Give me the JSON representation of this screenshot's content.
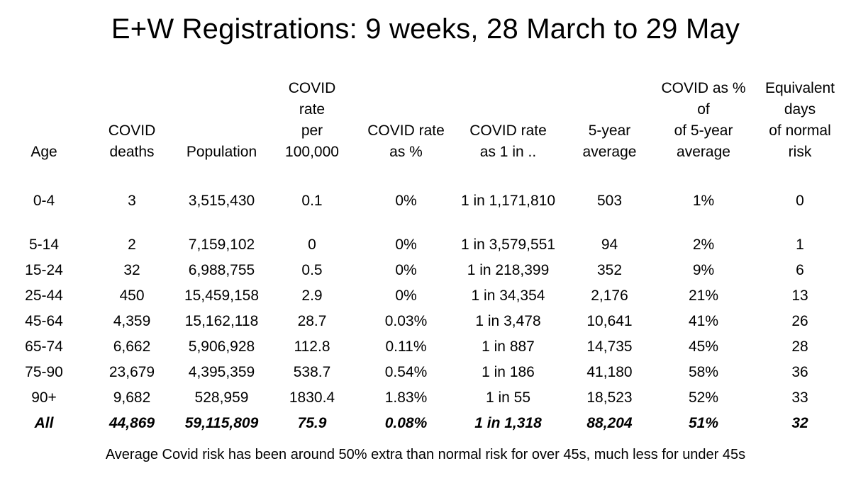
{
  "title": "E+W Registrations: 9 weeks, 28 March to 29 May",
  "footer": "Average Covid risk has been around 50% extra than normal risk for over 45s, much less for under 45s",
  "table": {
    "headers": [
      "Age",
      "COVID\ndeaths",
      "Population",
      "COVID\nrate\nper\n100,000",
      "COVID rate\nas %",
      "COVID rate\nas 1 in ..",
      "5-year\naverage",
      "COVID as %\nof\nof 5-year\naverage",
      "Equivalent\ndays\nof normal\nrisk"
    ],
    "rows": [
      [
        "0-4",
        "3",
        "3,515,430",
        "0.1",
        "0%",
        "1 in 1,171,810",
        "503",
        "1%",
        "0"
      ],
      [
        "5-14",
        "2",
        "7,159,102",
        "0",
        "0%",
        "1 in 3,579,551",
        "94",
        "2%",
        "1"
      ],
      [
        "15-24",
        "32",
        "6,988,755",
        "0.5",
        "0%",
        "1 in 218,399",
        "352",
        "9%",
        "6"
      ],
      [
        "25-44",
        "450",
        "15,459,158",
        "2.9",
        "0%",
        "1 in 34,354",
        "2,176",
        "21%",
        "13"
      ],
      [
        "45-64",
        "4,359",
        "15,162,118",
        "28.7",
        "0.03%",
        "1 in 3,478",
        "10,641",
        "41%",
        "26"
      ],
      [
        "65-74",
        "6,662",
        "5,906,928",
        "112.8",
        "0.11%",
        "1 in 887",
        "14,735",
        "45%",
        "28"
      ],
      [
        "75-90",
        "23,679",
        "4,395,359",
        "538.7",
        "0.54%",
        "1 in 186",
        "41,180",
        "58%",
        "36"
      ],
      [
        "90+",
        "9,682",
        "528,959",
        "1830.4",
        "1.83%",
        "1 in 55",
        "18,523",
        "52%",
        "33"
      ],
      [
        "All",
        "44,869",
        "59,115,809",
        "75.9",
        "0.08%",
        "1 in 1,318",
        "88,204",
        "51%",
        "32"
      ]
    ]
  },
  "chart_data": {
    "type": "table",
    "title": "E+W Registrations: 9 weeks, 28 March to 29 May",
    "note": "Average Covid risk has been around 50% extra than normal risk for over 45s, much less for under 45s",
    "columns": [
      "Age",
      "COVID deaths",
      "Population",
      "COVID rate per 100,000",
      "COVID rate as %",
      "COVID rate as 1 in ..",
      "5-year average",
      "COVID as % of of 5-year average",
      "Equivalent days of normal risk"
    ],
    "rows": [
      {
        "age": "0-4",
        "covid_deaths": 3,
        "population": 3515430,
        "rate_per_100k": 0.1,
        "rate_pct": "0%",
        "rate_1_in": 1171810,
        "five_year_average": 503,
        "covid_pct_of_5yr_avg": "1%",
        "equivalent_days": 0
      },
      {
        "age": "5-14",
        "covid_deaths": 2,
        "population": 7159102,
        "rate_per_100k": 0,
        "rate_pct": "0%",
        "rate_1_in": 3579551,
        "five_year_average": 94,
        "covid_pct_of_5yr_avg": "2%",
        "equivalent_days": 1
      },
      {
        "age": "15-24",
        "covid_deaths": 32,
        "population": 6988755,
        "rate_per_100k": 0.5,
        "rate_pct": "0%",
        "rate_1_in": 218399,
        "five_year_average": 352,
        "covid_pct_of_5yr_avg": "9%",
        "equivalent_days": 6
      },
      {
        "age": "25-44",
        "covid_deaths": 450,
        "population": 15459158,
        "rate_per_100k": 2.9,
        "rate_pct": "0%",
        "rate_1_in": 34354,
        "five_year_average": 2176,
        "covid_pct_of_5yr_avg": "21%",
        "equivalent_days": 13
      },
      {
        "age": "45-64",
        "covid_deaths": 4359,
        "population": 15162118,
        "rate_per_100k": 28.7,
        "rate_pct": "0.03%",
        "rate_1_in": 3478,
        "five_year_average": 10641,
        "covid_pct_of_5yr_avg": "41%",
        "equivalent_days": 26
      },
      {
        "age": "65-74",
        "covid_deaths": 6662,
        "population": 5906928,
        "rate_per_100k": 112.8,
        "rate_pct": "0.11%",
        "rate_1_in": 887,
        "five_year_average": 14735,
        "covid_pct_of_5yr_avg": "45%",
        "equivalent_days": 28
      },
      {
        "age": "75-90",
        "covid_deaths": 23679,
        "population": 4395359,
        "rate_per_100k": 538.7,
        "rate_pct": "0.54%",
        "rate_1_in": 186,
        "five_year_average": 41180,
        "covid_pct_of_5yr_avg": "58%",
        "equivalent_days": 36
      },
      {
        "age": "90+",
        "covid_deaths": 9682,
        "population": 528959,
        "rate_per_100k": 1830.4,
        "rate_pct": "1.83%",
        "rate_1_in": 55,
        "five_year_average": 18523,
        "covid_pct_of_5yr_avg": "52%",
        "equivalent_days": 33
      },
      {
        "age": "All",
        "covid_deaths": 44869,
        "population": 59115809,
        "rate_per_100k": 75.9,
        "rate_pct": "0.08%",
        "rate_1_in": 1318,
        "five_year_average": 88204,
        "covid_pct_of_5yr_avg": "51%",
        "equivalent_days": 32
      }
    ]
  }
}
